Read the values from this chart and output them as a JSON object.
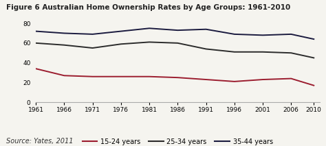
{
  "title": "Figure 6 Australian Home Ownership Rates by Age Groups: 1961-2010",
  "source": "Source: Yates, 2011",
  "years": [
    1961,
    1966,
    1971,
    1976,
    1981,
    1986,
    1991,
    1996,
    2001,
    2006,
    2010
  ],
  "series_15_24": [
    34,
    27,
    26,
    26,
    26,
    25,
    23,
    21,
    23,
    24,
    17
  ],
  "series_25_34": [
    60,
    58,
    55,
    59,
    61,
    60,
    54,
    51,
    51,
    50,
    45
  ],
  "series_35_44": [
    72,
    70,
    69,
    72,
    75,
    73,
    74,
    69,
    68,
    69,
    64
  ],
  "color_15_24": "#9b1c2e",
  "color_25_34": "#2b2b2b",
  "color_35_44": "#1a1a3e",
  "ylim": [
    0,
    80
  ],
  "yticks": [
    0,
    20,
    40,
    60,
    80
  ],
  "legend_labels": [
    "15-24 years",
    "25-34 years",
    "35-44 years"
  ],
  "title_fontsize": 7.5,
  "source_fontsize": 7,
  "tick_fontsize": 6.5,
  "legend_fontsize": 7,
  "bg_color": "#f5f4ef"
}
